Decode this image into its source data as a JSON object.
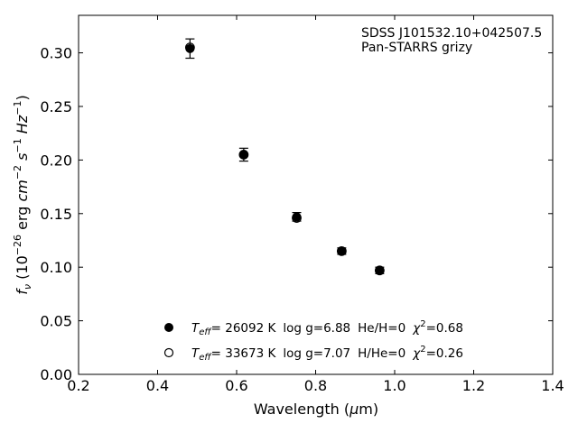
{
  "chart_data": {
    "type": "scatter",
    "annotation": {
      "line1": "SDSS J101532.10+042507.5",
      "line2": "Pan-STARRS grizy"
    },
    "xlabel": {
      "pre": "Wavelength (",
      "mu": "μ",
      "post": "m)"
    },
    "ylabel": {
      "f": "f",
      "nu": "ν",
      "open": " (10",
      "exp1": "−26",
      "erg": " erg ",
      "cm": "cm",
      "exp2": "−2",
      "s": "s",
      "exp3": "−1",
      "hz": "Hz",
      "exp4": "−1",
      "close": ")"
    },
    "xlim": [
      0.2,
      1.4
    ],
    "ylim": [
      0.0,
      0.335
    ],
    "xticks": [
      0.2,
      0.4,
      0.6,
      0.8,
      1.0,
      1.2,
      1.4
    ],
    "yticks": [
      0.0,
      0.05,
      0.1,
      0.15,
      0.2,
      0.25,
      0.3
    ],
    "xtick_labels": [
      "0.2",
      "0.4",
      "0.6",
      "0.8",
      "1.0",
      "1.2",
      "1.4"
    ],
    "ytick_labels": [
      "0.00",
      "0.05",
      "0.10",
      "0.15",
      "0.20",
      "0.25",
      "0.30"
    ],
    "grid": false,
    "legend_position": "bottom-center",
    "series": [
      {
        "marker": "filled-circle",
        "color": "#000000",
        "legend": {
          "t": "T",
          "sub": "eff",
          "temp": "= 26092 K",
          "logg": "log g=6.88",
          "comp": "He/H=0",
          "chi": "χ",
          "sup": "2",
          "chival": "=0.68"
        },
        "points": [
          {
            "x": 0.482,
            "y": 0.304,
            "err": 0.009
          },
          {
            "x": 0.618,
            "y": 0.205,
            "err": 0.006
          },
          {
            "x": 0.752,
            "y": 0.147,
            "err": 0.004
          },
          {
            "x": 0.866,
            "y": 0.115,
            "err": 0.003
          },
          {
            "x": 0.962,
            "y": 0.097,
            "err": 0.003
          }
        ]
      },
      {
        "marker": "open-circle",
        "color": "#000000",
        "legend": {
          "t": "T",
          "sub": "eff",
          "temp": "= 33673 K",
          "logg": "log g=7.07",
          "comp": "H/He=0",
          "chi": "χ",
          "sup": "2",
          "chival": "=0.26"
        },
        "points": [
          {
            "x": 0.482,
            "y": 0.305,
            "err": 0.0
          },
          {
            "x": 0.618,
            "y": 0.205,
            "err": 0.0
          },
          {
            "x": 0.752,
            "y": 0.146,
            "err": 0.0
          },
          {
            "x": 0.866,
            "y": 0.115,
            "err": 0.0
          },
          {
            "x": 0.962,
            "y": 0.097,
            "err": 0.0
          }
        ]
      }
    ]
  }
}
